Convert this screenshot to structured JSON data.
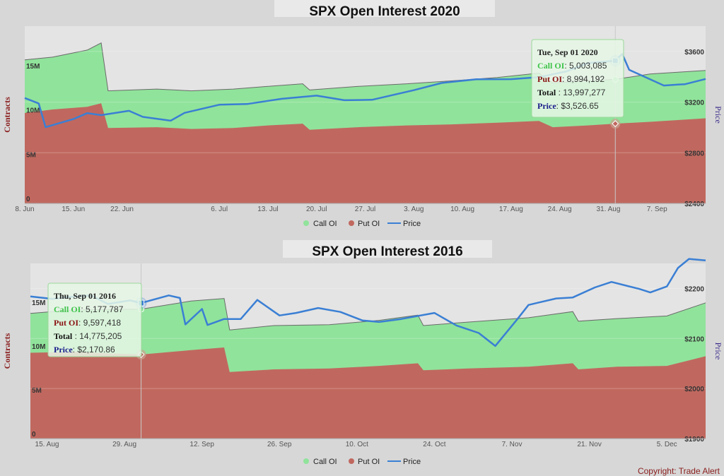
{
  "colors": {
    "call": "#90e39b",
    "put": "#c0685f",
    "price": "#3a7fd4",
    "call_text": "#3fc44a",
    "put_text": "#8a1212",
    "price_text": "#1a1a8a"
  },
  "legend": {
    "call": "Call OI",
    "put": "Put OI",
    "price": "Price"
  },
  "copyright": "Copyright: Trade Alert",
  "chart_data": [
    {
      "type": "area",
      "title": "SPX Open Interest 2020",
      "ylabel": "Contracts",
      "ylabel_right": "Price",
      "ylim": [
        0,
        20000000
      ],
      "ylim_right": [
        2400,
        3800
      ],
      "yticks_left": [
        "0",
        "5M",
        "10M",
        "15M"
      ],
      "yticks_left_values": [
        0,
        5000000,
        10000000,
        15000000
      ],
      "yticks_right": [
        "$2400",
        "$2800",
        "$3200",
        "$3600"
      ],
      "yticks_right_values": [
        2400,
        2800,
        3200,
        3600
      ],
      "xlim": [
        "2020-06-08",
        "2020-09-14"
      ],
      "xticks": [
        {
          "label": "8. Jun",
          "date": "2020-06-08"
        },
        {
          "label": "15. Jun",
          "date": "2020-06-15"
        },
        {
          "label": "22. Jun",
          "date": "2020-06-22"
        },
        {
          "label": "6. Jul",
          "date": "2020-07-06"
        },
        {
          "label": "13. Jul",
          "date": "2020-07-13"
        },
        {
          "label": "20. Jul",
          "date": "2020-07-20"
        },
        {
          "label": "27. Jul",
          "date": "2020-07-27"
        },
        {
          "label": "3. Aug",
          "date": "2020-08-03"
        },
        {
          "label": "10. Aug",
          "date": "2020-08-10"
        },
        {
          "label": "17. Aug",
          "date": "2020-08-17"
        },
        {
          "label": "24. Aug",
          "date": "2020-08-24"
        },
        {
          "label": "31. Aug",
          "date": "2020-08-31"
        },
        {
          "label": "7. Sep",
          "date": "2020-09-07"
        }
      ],
      "put_oi": [
        [
          "2020-06-08",
          10200000
        ],
        [
          "2020-06-12",
          10600000
        ],
        [
          "2020-06-17",
          10900000
        ],
        [
          "2020-06-19",
          11300000
        ],
        [
          "2020-06-20",
          8500000
        ],
        [
          "2020-06-27",
          8600000
        ],
        [
          "2020-07-02",
          8400000
        ],
        [
          "2020-07-08",
          8500000
        ],
        [
          "2020-07-13",
          8800000
        ],
        [
          "2020-07-18",
          9000000
        ],
        [
          "2020-07-19",
          8300000
        ],
        [
          "2020-07-26",
          8600000
        ],
        [
          "2020-08-02",
          8800000
        ],
        [
          "2020-08-08",
          8900000
        ],
        [
          "2020-08-15",
          9100000
        ],
        [
          "2020-08-21",
          9300000
        ],
        [
          "2020-08-23",
          8600000
        ],
        [
          "2020-08-28",
          8800000
        ],
        [
          "2020-09-01",
          8994192
        ],
        [
          "2020-09-06",
          9200000
        ],
        [
          "2020-09-14",
          9600000
        ]
      ],
      "total_oi": [
        [
          "2020-06-08",
          16200000
        ],
        [
          "2020-06-12",
          16500000
        ],
        [
          "2020-06-17",
          17300000
        ],
        [
          "2020-06-19",
          18100000
        ],
        [
          "2020-06-20",
          12700000
        ],
        [
          "2020-06-27",
          12900000
        ],
        [
          "2020-07-02",
          12700000
        ],
        [
          "2020-07-08",
          12900000
        ],
        [
          "2020-07-13",
          13200000
        ],
        [
          "2020-07-18",
          13500000
        ],
        [
          "2020-07-19",
          12800000
        ],
        [
          "2020-07-26",
          13200000
        ],
        [
          "2020-08-02",
          13500000
        ],
        [
          "2020-08-08",
          13800000
        ],
        [
          "2020-08-15",
          14200000
        ],
        [
          "2020-08-21",
          14700000
        ],
        [
          "2020-08-23",
          13600000
        ],
        [
          "2020-08-28",
          13800000
        ],
        [
          "2020-09-01",
          13997277
        ],
        [
          "2020-09-06",
          14600000
        ],
        [
          "2020-09-14",
          15000000
        ]
      ],
      "price": [
        [
          "2020-06-08",
          3232
        ],
        [
          "2020-06-10",
          3190
        ],
        [
          "2020-06-11",
          3002
        ],
        [
          "2020-06-15",
          3066
        ],
        [
          "2020-06-17",
          3113
        ],
        [
          "2020-06-19",
          3097
        ],
        [
          "2020-06-23",
          3131
        ],
        [
          "2020-06-25",
          3083
        ],
        [
          "2020-06-29",
          3053
        ],
        [
          "2020-07-01",
          3115
        ],
        [
          "2020-07-06",
          3179
        ],
        [
          "2020-07-10",
          3185
        ],
        [
          "2020-07-15",
          3226
        ],
        [
          "2020-07-20",
          3251
        ],
        [
          "2020-07-24",
          3215
        ],
        [
          "2020-07-28",
          3218
        ],
        [
          "2020-08-03",
          3294
        ],
        [
          "2020-08-07",
          3351
        ],
        [
          "2020-08-12",
          3380
        ],
        [
          "2020-08-17",
          3381
        ],
        [
          "2020-08-21",
          3397
        ],
        [
          "2020-08-25",
          3443
        ],
        [
          "2020-08-28",
          3508
        ],
        [
          "2020-09-01",
          3526.65
        ],
        [
          "2020-09-02",
          3580
        ],
        [
          "2020-09-03",
          3455
        ],
        [
          "2020-09-08",
          3331
        ],
        [
          "2020-09-10",
          3339
        ],
        [
          "2020-09-11",
          3341
        ],
        [
          "2020-09-14",
          3383
        ]
      ],
      "tooltip": {
        "date": "2020-09-01",
        "header": "Tue, Sep 01 2020",
        "call_label": "Call OI",
        "call_value": "5,003,085",
        "put_label": "Put OI",
        "put_value": "8,994,192",
        "total_label": "Total",
        "total_value": "13,997,277",
        "price_label": "Price",
        "price_value": "$3,526.65"
      }
    },
    {
      "type": "area",
      "title": "SPX Open Interest 2016",
      "ylabel": "Contracts",
      "ylabel_right": "Price",
      "ylim": [
        0,
        20000000
      ],
      "ylim_right": [
        1900,
        2250
      ],
      "yticks_left": [
        "0",
        "5M",
        "10M",
        "15M"
      ],
      "yticks_left_values": [
        0,
        5000000,
        10000000,
        15000000
      ],
      "yticks_right": [
        "$1900",
        "$2000",
        "$2100",
        "$2200"
      ],
      "yticks_right_values": [
        1900,
        2000,
        2100,
        2200
      ],
      "xlim": [
        "2016-08-12",
        "2016-12-12"
      ],
      "xticks": [
        {
          "label": "15. Aug",
          "date": "2016-08-15"
        },
        {
          "label": "29. Aug",
          "date": "2016-08-29"
        },
        {
          "label": "12. Sep",
          "date": "2016-09-12"
        },
        {
          "label": "26. Sep",
          "date": "2016-09-26"
        },
        {
          "label": "10. Oct",
          "date": "2016-10-10"
        },
        {
          "label": "24. Oct",
          "date": "2016-10-24"
        },
        {
          "label": "7. Nov",
          "date": "2016-11-07"
        },
        {
          "label": "21. Nov",
          "date": "2016-11-21"
        },
        {
          "label": "5. Dec",
          "date": "2016-12-05"
        }
      ],
      "put_oi": [
        [
          "2016-08-12",
          9800000
        ],
        [
          "2016-08-20",
          9900000
        ],
        [
          "2016-09-01",
          9597418
        ],
        [
          "2016-09-10",
          10100000
        ],
        [
          "2016-09-16",
          10400000
        ],
        [
          "2016-09-17",
          7600000
        ],
        [
          "2016-09-25",
          7900000
        ],
        [
          "2016-10-05",
          8000000
        ],
        [
          "2016-10-14",
          8300000
        ],
        [
          "2016-10-21",
          8600000
        ],
        [
          "2016-10-22",
          7800000
        ],
        [
          "2016-10-30",
          8000000
        ],
        [
          "2016-11-10",
          8200000
        ],
        [
          "2016-11-18",
          8600000
        ],
        [
          "2016-11-19",
          7900000
        ],
        [
          "2016-11-26",
          8200000
        ],
        [
          "2016-12-05",
          8300000
        ],
        [
          "2016-12-12",
          9400000
        ]
      ],
      "total_oi": [
        [
          "2016-08-12",
          14300000
        ],
        [
          "2016-08-20",
          14700000
        ],
        [
          "2016-09-01",
          14775205
        ],
        [
          "2016-09-10",
          15700000
        ],
        [
          "2016-09-16",
          16000000
        ],
        [
          "2016-09-17",
          12400000
        ],
        [
          "2016-09-25",
          12900000
        ],
        [
          "2016-10-05",
          13000000
        ],
        [
          "2016-10-14",
          13500000
        ],
        [
          "2016-10-21",
          14100000
        ],
        [
          "2016-10-22",
          12900000
        ],
        [
          "2016-10-30",
          13300000
        ],
        [
          "2016-11-10",
          13800000
        ],
        [
          "2016-11-18",
          14500000
        ],
        [
          "2016-11-19",
          13400000
        ],
        [
          "2016-11-26",
          13700000
        ],
        [
          "2016-12-05",
          14000000
        ],
        [
          "2016-12-12",
          15500000
        ]
      ],
      "price": [
        [
          "2016-08-12",
          2184
        ],
        [
          "2016-08-16",
          2179
        ],
        [
          "2016-08-19",
          2183
        ],
        [
          "2016-08-23",
          2186
        ],
        [
          "2016-08-26",
          2169
        ],
        [
          "2016-08-30",
          2176
        ],
        [
          "2016-09-01",
          2170.86
        ],
        [
          "2016-09-06",
          2186
        ],
        [
          "2016-09-08",
          2181
        ],
        [
          "2016-09-09",
          2128
        ],
        [
          "2016-09-12",
          2159
        ],
        [
          "2016-09-13",
          2127
        ],
        [
          "2016-09-16",
          2139
        ],
        [
          "2016-09-19",
          2139
        ],
        [
          "2016-09-22",
          2177
        ],
        [
          "2016-09-26",
          2146
        ],
        [
          "2016-09-29",
          2151
        ],
        [
          "2016-10-03",
          2161
        ],
        [
          "2016-10-07",
          2153
        ],
        [
          "2016-10-11",
          2136
        ],
        [
          "2016-10-14",
          2133
        ],
        [
          "2016-10-18",
          2139
        ],
        [
          "2016-10-24",
          2151
        ],
        [
          "2016-10-28",
          2126
        ],
        [
          "2016-11-01",
          2111
        ],
        [
          "2016-11-04",
          2085
        ],
        [
          "2016-11-08",
          2139
        ],
        [
          "2016-11-10",
          2167
        ],
        [
          "2016-11-15",
          2180
        ],
        [
          "2016-11-18",
          2182
        ],
        [
          "2016-11-22",
          2202
        ],
        [
          "2016-11-25",
          2213
        ],
        [
          "2016-11-30",
          2199
        ],
        [
          "2016-12-02",
          2192
        ],
        [
          "2016-12-05",
          2204
        ],
        [
          "2016-12-07",
          2241
        ],
        [
          "2016-12-09",
          2259
        ],
        [
          "2016-12-12",
          2256
        ]
      ],
      "tooltip": {
        "date": "2016-09-01",
        "header": "Thu, Sep 01 2016",
        "call_label": "Call OI",
        "call_value": "5,177,787",
        "put_label": "Put OI",
        "put_value": "9,597,418",
        "total_label": "Total",
        "total_value": "14,775,205",
        "price_label": "Price",
        "price_value": "$2,170.86"
      }
    }
  ]
}
